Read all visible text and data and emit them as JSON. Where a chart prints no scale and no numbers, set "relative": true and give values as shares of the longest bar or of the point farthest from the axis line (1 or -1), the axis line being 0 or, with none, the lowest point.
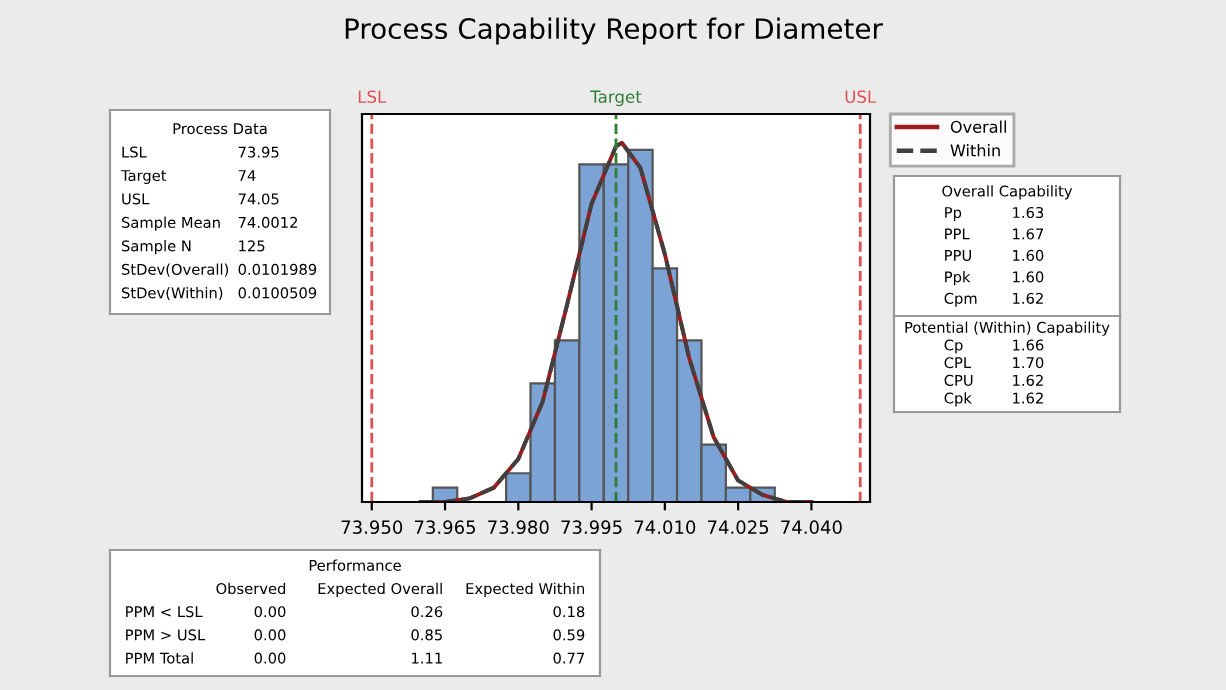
{
  "chart_data": [
    {
      "type": "histogram",
      "title": "Process Capability Report for Diameter",
      "relative": true,
      "bins": [
        73.9625,
        73.9675,
        73.9725,
        73.9775,
        73.9825,
        73.9875,
        73.9925,
        73.9975,
        74.0025,
        74.0075,
        74.0125,
        74.0175,
        74.0225,
        74.0275,
        74.0325
      ],
      "values": [
        0.04,
        0,
        0,
        0.08,
        0.33,
        0.45,
        0.94,
        0.94,
        0.98,
        0.65,
        0.45,
        0.16,
        0.04,
        0.04
      ],
      "color": "#7ba3d6",
      "series": [
        {
          "name": "Overall",
          "type": "line",
          "color": "#9b1c1c",
          "line_style": "solid",
          "x": [
            73.96,
            73.965,
            73.97,
            73.975,
            73.98,
            73.985,
            73.99,
            73.995,
            74.0,
            74.0012,
            74.005,
            74.01,
            74.015,
            74.02,
            74.025,
            74.03,
            74.035,
            74.04
          ],
          "values": [
            0,
            0,
            0.01,
            0.04,
            0.12,
            0.28,
            0.55,
            0.83,
            0.99,
            1.0,
            0.93,
            0.69,
            0.4,
            0.18,
            0.06,
            0.02,
            0,
            0
          ]
        },
        {
          "name": "Within",
          "type": "line",
          "color": "#404040",
          "line_style": "dashed",
          "x": [
            73.96,
            73.965,
            73.97,
            73.975,
            73.98,
            73.985,
            73.99,
            73.995,
            74.0,
            74.0012,
            74.005,
            74.01,
            74.015,
            74.02,
            74.025,
            74.03,
            74.035,
            74.04
          ],
          "values": [
            0,
            0,
            0.01,
            0.04,
            0.12,
            0.28,
            0.55,
            0.83,
            0.99,
            1.0,
            0.93,
            0.69,
            0.4,
            0.18,
            0.06,
            0.02,
            0,
            0
          ]
        }
      ],
      "xlim": [
        73.948,
        74.052
      ],
      "xticks": [
        {
          "value": 73.95,
          "label": "73.950"
        },
        {
          "value": 73.965,
          "label": "73.965"
        },
        {
          "value": 73.98,
          "label": "73.980"
        },
        {
          "value": 73.995,
          "label": "73.995"
        },
        {
          "value": 74.01,
          "label": "74.010"
        },
        {
          "value": 74.025,
          "label": "74.025"
        },
        {
          "value": 74.04,
          "label": "74.040"
        }
      ],
      "ref_lines": [
        {
          "axis": "x",
          "value": 73.95,
          "label": "LSL",
          "color": "#e05050",
          "line_style": "dashed"
        },
        {
          "axis": "x",
          "value": 74,
          "label": "Target",
          "color": "#2e7d32",
          "line_style": "dashed"
        },
        {
          "axis": "x",
          "value": 74.05,
          "label": "USL",
          "color": "#e05050",
          "line_style": "dashed"
        }
      ],
      "legend": "right",
      "grid": false
    },
    {
      "type": "other",
      "title": "Process Data",
      "annotations": [
        "LSL\t73.95",
        "Target\t74",
        "USL\t74.05",
        "Sample Mean\t74.0012",
        "Sample N\t125",
        "StDev(Overall)\t0.0101989",
        "StDev(Within)\t0.0100509"
      ]
    },
    {
      "type": "other",
      "title": "Overall Capability",
      "annotations": [
        "Pp\t1.63",
        "PPL\t1.67",
        "PPU\t1.60",
        "Ppk\t1.60",
        "Cpm\t1.62"
      ]
    },
    {
      "type": "other",
      "title": "Potential (Within) Capability",
      "annotations": [
        "Cp\t1.66",
        "CPL\t1.70",
        "CPU\t1.62",
        "Cpk\t1.62"
      ]
    },
    {
      "type": "other",
      "title": "Performance",
      "annotations": [
        "\tObserved\tExpected Overall\tExpected Within",
        "PPM < LSL\t0.00\t0.26\t0.18",
        "PPM > USL\t0.00\t0.85\t0.59",
        "PPM Total\t0.00\t1.11\t0.77"
      ]
    }
  ]
}
